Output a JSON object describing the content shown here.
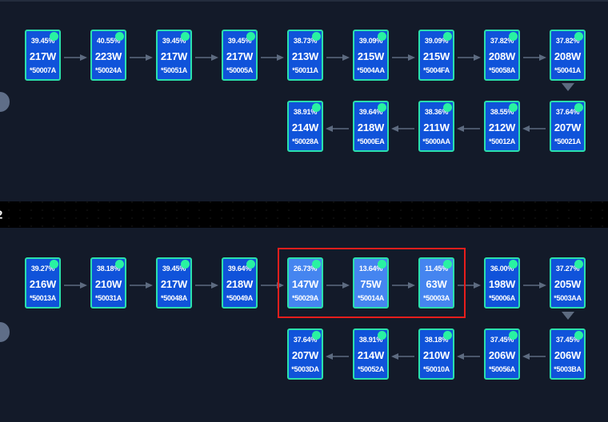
{
  "colors": {
    "background": "#131a29",
    "band": "#000000",
    "card_fill": "#1053da",
    "card_fill_highlighted": "#4585f0",
    "card_border": "#2ae0ac",
    "status_dot": "#29f2a2",
    "arrow": "#5d6b80",
    "selection_box": "#e81e1c",
    "handle": "#5f6e88",
    "text": "#ffffff"
  },
  "icons": {
    "status_dot": "filled-circle-top-right-of-each-card",
    "flow_arrow": "thin-gray-arrow-between-cards",
    "down_chevron": "gray-triangle-linking-rows"
  },
  "divider": {
    "label": "2"
  },
  "strings": [
    {
      "id": "string-1",
      "forward_row": [
        {
          "percent": "39.45%",
          "power": "217W",
          "serial": "*50007A",
          "highlighted": false
        },
        {
          "percent": "40.55%",
          "power": "223W",
          "serial": "*50024A",
          "highlighted": false
        },
        {
          "percent": "39.45%",
          "power": "217W",
          "serial": "*50051A",
          "highlighted": false
        },
        {
          "percent": "39.45%",
          "power": "217W",
          "serial": "*50005A",
          "highlighted": false
        },
        {
          "percent": "38.73%",
          "power": "213W",
          "serial": "*50011A",
          "highlighted": false
        },
        {
          "percent": "39.09%",
          "power": "215W",
          "serial": "*5004AA",
          "highlighted": false
        },
        {
          "percent": "39.09%",
          "power": "215W",
          "serial": "*5004FA",
          "highlighted": false
        },
        {
          "percent": "37.82%",
          "power": "208W",
          "serial": "*50058A",
          "highlighted": false
        },
        {
          "percent": "37.82%",
          "power": "208W",
          "serial": "*50041A",
          "highlighted": false
        }
      ],
      "return_row": [
        {
          "percent": "38.91%",
          "power": "214W",
          "serial": "*50028A",
          "highlighted": false
        },
        {
          "percent": "39.64%",
          "power": "218W",
          "serial": "*5000EA",
          "highlighted": false
        },
        {
          "percent": "38.36%",
          "power": "211W",
          "serial": "*5000AA",
          "highlighted": false
        },
        {
          "percent": "38.55%",
          "power": "212W",
          "serial": "*50012A",
          "highlighted": false
        },
        {
          "percent": "37.64%",
          "power": "207W",
          "serial": "*50021A",
          "highlighted": false
        }
      ]
    },
    {
      "id": "string-2",
      "forward_row": [
        {
          "percent": "39.27%",
          "power": "216W",
          "serial": "*50013A",
          "highlighted": false
        },
        {
          "percent": "38.18%",
          "power": "210W",
          "serial": "*50031A",
          "highlighted": false
        },
        {
          "percent": "39.45%",
          "power": "217W",
          "serial": "*50048A",
          "highlighted": false
        },
        {
          "percent": "39.64%",
          "power": "218W",
          "serial": "*50049A",
          "highlighted": false
        },
        {
          "percent": "26.73%",
          "power": "147W",
          "serial": "*50029A",
          "highlighted": true
        },
        {
          "percent": "13.64%",
          "power": "75W",
          "serial": "*50014A",
          "highlighted": true
        },
        {
          "percent": "11.45%",
          "power": "63W",
          "serial": "*50003A",
          "highlighted": true
        },
        {
          "percent": "36.00%",
          "power": "198W",
          "serial": "*50006A",
          "highlighted": false
        },
        {
          "percent": "37.27%",
          "power": "205W",
          "serial": "*5003AA",
          "highlighted": false
        }
      ],
      "return_row": [
        {
          "percent": "37.64%",
          "power": "207W",
          "serial": "*5003DA",
          "highlighted": false
        },
        {
          "percent": "38.91%",
          "power": "214W",
          "serial": "*50052A",
          "highlighted": false
        },
        {
          "percent": "38.18%",
          "power": "210W",
          "serial": "*50010A",
          "highlighted": false
        },
        {
          "percent": "37.45%",
          "power": "206W",
          "serial": "*50056A",
          "highlighted": false
        },
        {
          "percent": "37.45%",
          "power": "206W",
          "serial": "*5003BA",
          "highlighted": false
        }
      ]
    }
  ]
}
